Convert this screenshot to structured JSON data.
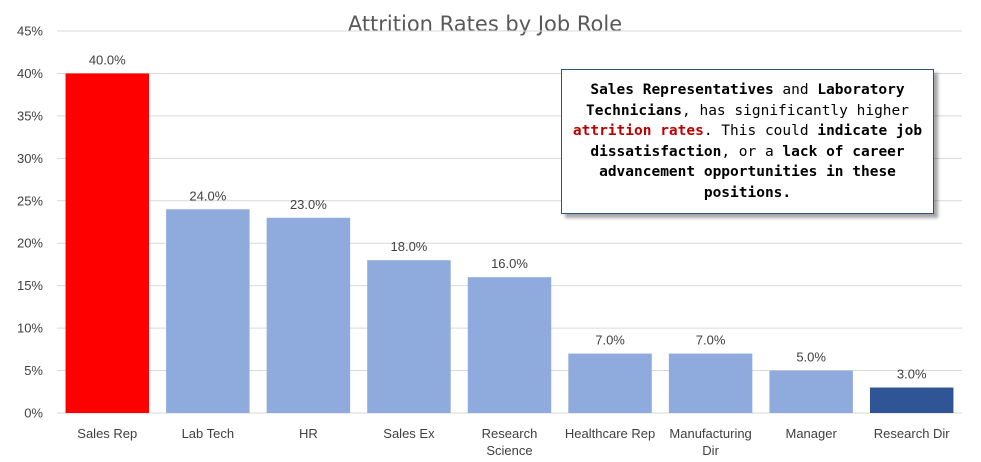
{
  "chart_data": {
    "type": "bar",
    "title": "Attrition Rates by Job Role",
    "categories": [
      [
        "Sales Rep"
      ],
      [
        "Lab Tech"
      ],
      [
        "HR"
      ],
      [
        "Sales Ex"
      ],
      [
        "Research",
        "Science"
      ],
      [
        "Healthcare Rep"
      ],
      [
        "Manufacturing",
        "Dir"
      ],
      [
        "Manager"
      ],
      [
        "Research Dir"
      ]
    ],
    "values": [
      40.0,
      24.0,
      23.0,
      18.0,
      16.0,
      7.0,
      7.0,
      5.0,
      3.0
    ],
    "data_labels": [
      "40.0%",
      "24.0%",
      "23.0%",
      "18.0%",
      "16.0%",
      "7.0%",
      "7.0%",
      "5.0%",
      "3.0%"
    ],
    "colors": [
      "#ff0000",
      "#8faadc",
      "#8faadc",
      "#8faadc",
      "#8faadc",
      "#8faadc",
      "#8faadc",
      "#8faadc",
      "#2f5597"
    ],
    "ylim": [
      0,
      45
    ],
    "yticks": [
      0,
      5,
      10,
      15,
      20,
      25,
      30,
      35,
      40,
      45
    ],
    "ytick_labels": [
      "0%",
      "5%",
      "10%",
      "15%",
      "20%",
      "25%",
      "30%",
      "35%",
      "40%",
      "45%"
    ],
    "xlabel": "",
    "ylabel": "",
    "grid": true,
    "legend": "none"
  },
  "callout": {
    "part1": "Sales Representatives",
    "part2": " and ",
    "part3": "Laboratory Technicians",
    "part4": ", has significantly higher ",
    "part5": "attrition rates",
    "part6": ". This could ",
    "part7": "indicate job dissatisfaction",
    "part8": ", or a ",
    "part9": "lack of career advancement opportunities in these positions."
  }
}
